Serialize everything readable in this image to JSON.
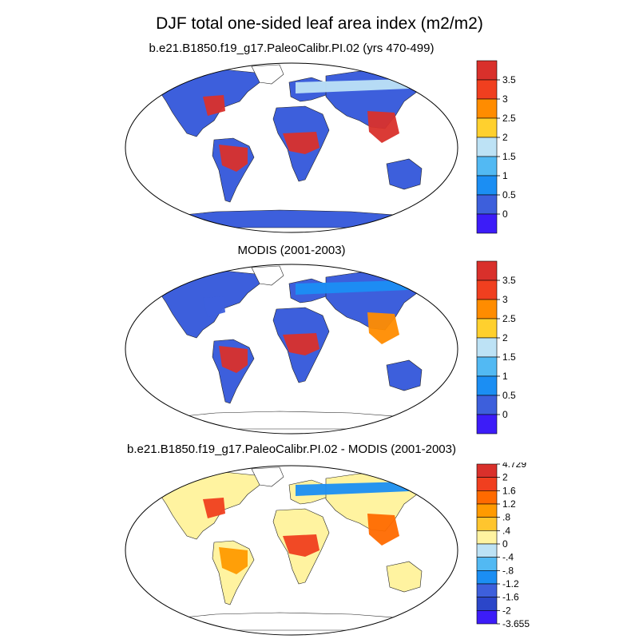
{
  "figure": {
    "title": "DJF total one-sided leaf area index (m2/m2)"
  },
  "panels": [
    {
      "id": "model",
      "title": "b.e21.B1850.f19_g17.PaleoCalibr.PI.02 (yrs 470-499)",
      "ocean_color": "#ffffff",
      "land_base_color": "#3d5fdc",
      "colorbar": {
        "labels": [
          "3.5",
          "3",
          "2.5",
          "2",
          "1.5",
          "1",
          "0.5",
          "0"
        ],
        "colors": [
          "#d9302b",
          "#f03f1f",
          "#ff8c00",
          "#ffd02e",
          "#bde2f5",
          "#52b9f3",
          "#1b8ef3",
          "#3d5fdc",
          "#3c1cf8"
        ]
      },
      "regions": [
        {
          "name": "amazon",
          "color": "#d9302b"
        },
        {
          "name": "central-africa",
          "color": "#d9302b"
        },
        {
          "name": "southeast-asia",
          "color": "#d9302b"
        },
        {
          "name": "eastern-us",
          "color": "#d9302b"
        },
        {
          "name": "boreal-belt",
          "color": "#bde2f5"
        }
      ]
    },
    {
      "id": "modis",
      "title": "MODIS (2001-2003)",
      "ocean_color": "#ffffff",
      "land_base_color": "#3d5fdc",
      "colorbar": {
        "labels": [
          "3.5",
          "3",
          "2.5",
          "2",
          "1.5",
          "1",
          "0.5",
          "0"
        ],
        "colors": [
          "#d9302b",
          "#f03f1f",
          "#ff8c00",
          "#ffd02e",
          "#bde2f5",
          "#52b9f3",
          "#1b8ef3",
          "#3d5fdc",
          "#3c1cf8"
        ]
      },
      "regions": [
        {
          "name": "amazon",
          "color": "#d9302b"
        },
        {
          "name": "central-africa",
          "color": "#d9302b"
        },
        {
          "name": "southeast-asia",
          "color": "#ff8c00"
        },
        {
          "name": "eastern-us",
          "color": "#3d5fdc"
        },
        {
          "name": "boreal-belt",
          "color": "#1b8ef3"
        }
      ]
    },
    {
      "id": "difference",
      "title": "b.e21.B1850.f19_g17.PaleoCalibr.PI.02 - MODIS (2001-2003)",
      "ocean_color": "#ffffff",
      "land_base_color": "#fff3a0",
      "colorbar": {
        "labels": [
          "4.729",
          "2",
          "1.6",
          "1.2",
          ".8",
          ".4",
          "0",
          "-.4",
          "-.8",
          "-1.2",
          "-1.6",
          "-2",
          "-3.655"
        ],
        "colors": [
          "#d9302b",
          "#f03f1f",
          "#ff6a00",
          "#ff9a00",
          "#ffc52e",
          "#fff3a0",
          "#bde2f5",
          "#52b9f3",
          "#1b8ef3",
          "#3d5fdc",
          "#2b46c9",
          "#3c1cf8"
        ]
      },
      "regions": [
        {
          "name": "amazon",
          "color": "#ff9a00"
        },
        {
          "name": "central-africa",
          "color": "#f03f1f"
        },
        {
          "name": "southeast-asia",
          "color": "#ff6a00"
        },
        {
          "name": "eastern-us",
          "color": "#f03f1f"
        },
        {
          "name": "boreal-belt",
          "color": "#1b8ef3"
        }
      ]
    }
  ]
}
